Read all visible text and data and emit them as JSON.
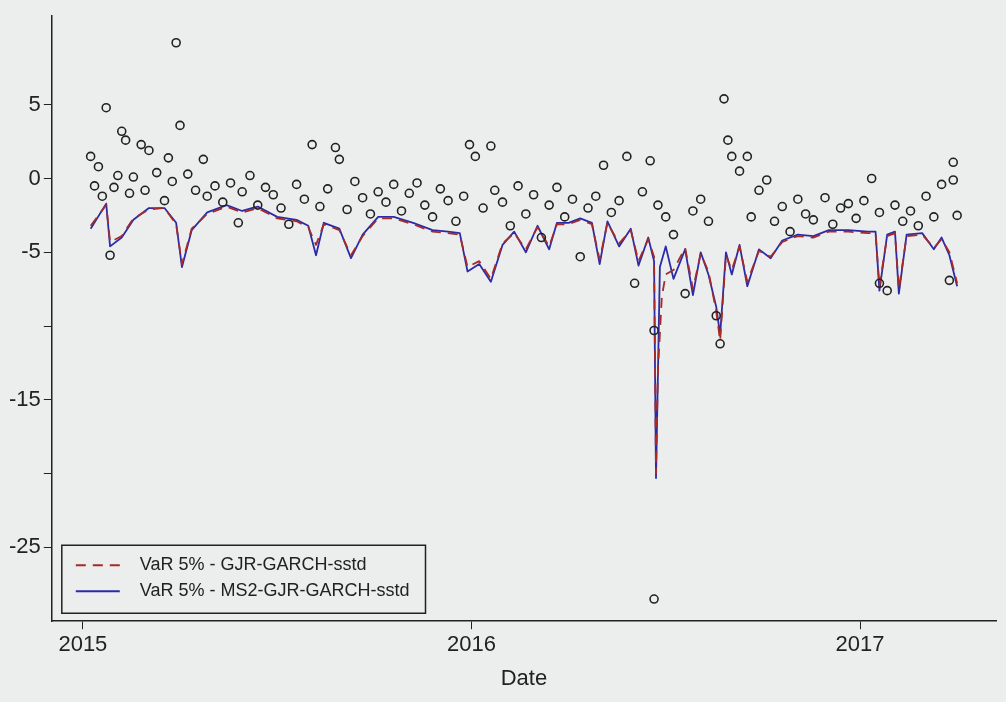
{
  "chart_data": {
    "type": "scatter",
    "xlabel": "Date",
    "xlim": [
      2014.92,
      2017.35
    ],
    "ylim": [
      -30,
      11
    ],
    "xticks": [
      2015,
      2016,
      2017
    ],
    "yticks": [
      {
        "value": -25,
        "label": "-25"
      },
      {
        "value": -20,
        "label": null
      },
      {
        "value": -15,
        "label": "-15"
      },
      {
        "value": -10,
        "label": null
      },
      {
        "value": -5,
        "label": "-5"
      },
      {
        "value": 0,
        "label": "0"
      },
      {
        "value": 5,
        "label": "5"
      }
    ],
    "grid": false,
    "legend": "bottom left",
    "series": [
      {
        "type": "scatter",
        "color": "#222222",
        "marker": "circle",
        "x": [
          2015.02,
          2015.03,
          2015.04,
          2015.05,
          2015.06,
          2015.07,
          2015.08,
          2015.09,
          2015.1,
          2015.11,
          2015.12,
          2015.13,
          2015.15,
          2015.16,
          2015.17,
          2015.19,
          2015.21,
          2015.22,
          2015.23,
          2015.24,
          2015.25,
          2015.27,
          2015.29,
          2015.31,
          2015.32,
          2015.34,
          2015.36,
          2015.38,
          2015.4,
          2015.41,
          2015.43,
          2015.45,
          2015.47,
          2015.49,
          2015.51,
          2015.53,
          2015.55,
          2015.57,
          2015.59,
          2015.61,
          2015.63,
          2015.65,
          2015.66,
          2015.68,
          2015.7,
          2015.72,
          2015.74,
          2015.76,
          2015.78,
          2015.8,
          2015.82,
          2015.84,
          2015.86,
          2015.88,
          2015.9,
          2015.92,
          2015.94,
          2015.96,
          2015.98,
          2015.995,
          2016.01,
          2016.03,
          2016.05,
          2016.06,
          2016.08,
          2016.1,
          2016.12,
          2016.14,
          2016.16,
          2016.18,
          2016.2,
          2016.22,
          2016.24,
          2016.26,
          2016.28,
          2016.3,
          2016.32,
          2016.34,
          2016.36,
          2016.38,
          2016.4,
          2016.42,
          2016.44,
          2016.46,
          2016.47,
          2016.47,
          2016.48,
          2016.5,
          2016.52,
          2016.55,
          2016.57,
          2016.59,
          2016.61,
          2016.63,
          2016.64,
          2016.65,
          2016.66,
          2016.67,
          2016.69,
          2016.71,
          2016.72,
          2016.74,
          2016.76,
          2016.78,
          2016.8,
          2016.82,
          2016.84,
          2016.86,
          2016.88,
          2016.91,
          2016.93,
          2016.95,
          2016.97,
          2016.99,
          2017.01,
          2017.03,
          2017.05,
          2017.05,
          2017.07,
          2017.09,
          2017.11,
          2017.13,
          2017.15,
          2017.17,
          2017.19,
          2017.21,
          2017.23,
          2017.24,
          2017.24,
          2017.25
        ],
        "values": [
          1.5,
          -0.5,
          0.8,
          -1.2,
          4.8,
          -5.2,
          -0.6,
          0.2,
          3.2,
          2.6,
          -1.0,
          0.1,
          2.3,
          -0.8,
          1.9,
          0.4,
          -1.5,
          1.4,
          -0.2,
          9.2,
          3.6,
          0.3,
          -0.8,
          1.3,
          -1.2,
          -0.5,
          -1.6,
          -0.3,
          -3.0,
          -0.9,
          0.2,
          -1.8,
          -0.6,
          -1.1,
          -2.0,
          -3.1,
          -0.4,
          -1.4,
          2.3,
          -1.9,
          -0.7,
          2.1,
          1.3,
          -2.1,
          -0.2,
          -1.3,
          -2.4,
          -0.9,
          -1.6,
          -0.4,
          -2.2,
          -1.0,
          -0.3,
          -1.8,
          -2.6,
          -0.7,
          -1.5,
          -2.9,
          -1.2,
          2.3,
          1.5,
          -2.0,
          2.2,
          -0.8,
          -1.6,
          -3.2,
          -0.5,
          -2.4,
          -1.1,
          -4.0,
          -1.8,
          -0.6,
          -2.6,
          -1.4,
          -5.3,
          -2.0,
          -1.2,
          0.9,
          -2.3,
          -1.5,
          1.5,
          -7.1,
          -0.9,
          1.2,
          -10.3,
          -28.5,
          -1.8,
          -2.6,
          -3.8,
          -7.8,
          -2.2,
          -1.4,
          -2.9,
          -9.3,
          -11.2,
          5.4,
          2.6,
          1.5,
          0.5,
          1.5,
          -2.6,
          -0.8,
          -0.1,
          -2.9,
          -1.9,
          -3.6,
          -1.4,
          -2.4,
          -2.8,
          -1.3,
          -3.1,
          -2.0,
          -1.7,
          -2.7,
          -1.5,
          0.0,
          -7.1,
          -2.3,
          -7.6,
          -1.8,
          -2.9,
          -2.2,
          -3.2,
          -1.2,
          -2.6,
          -0.4,
          -6.9,
          -0.1,
          1.1,
          -2.5
        ]
      },
      {
        "type": "line",
        "name": "VaR 5% - GJR-GARCH-sstd",
        "color": "#a52a2a",
        "line_style": "dashed",
        "marker": "none",
        "x": [
          2015.02,
          2015.06,
          2015.07,
          2015.1,
          2015.13,
          2015.17,
          2015.21,
          2015.24,
          2015.255,
          2015.28,
          2015.32,
          2015.37,
          2015.41,
          2015.45,
          2015.5,
          2015.55,
          2015.58,
          2015.6,
          2015.62,
          2015.66,
          2015.69,
          2015.72,
          2015.76,
          2015.8,
          2015.85,
          2015.9,
          2015.94,
          2015.97,
          2015.99,
          2016.02,
          2016.05,
          2016.08,
          2016.11,
          2016.14,
          2016.17,
          2016.2,
          2016.22,
          2016.25,
          2016.28,
          2016.31,
          2016.33,
          2016.35,
          2016.38,
          2016.41,
          2016.43,
          2016.455,
          2016.47,
          2016.475,
          2016.48,
          2016.49,
          2016.5,
          2016.52,
          2016.55,
          2016.57,
          2016.59,
          2016.61,
          2016.63,
          2016.64,
          2016.655,
          2016.67,
          2016.69,
          2016.71,
          2016.74,
          2016.77,
          2016.8,
          2016.84,
          2016.88,
          2016.92,
          2016.97,
          2017.02,
          2017.04,
          2017.05,
          2017.07,
          2017.09,
          2017.1,
          2017.12,
          2017.16,
          2017.19,
          2017.21,
          2017.23,
          2017.25
        ],
        "values": [
          -3.2,
          -1.8,
          -4.3,
          -3.9,
          -2.7,
          -2.1,
          -2.0,
          -3.1,
          -5.8,
          -3.4,
          -2.4,
          -1.9,
          -2.3,
          -2.0,
          -2.7,
          -2.9,
          -3.3,
          -4.5,
          -3.1,
          -3.5,
          -5.2,
          -3.9,
          -2.7,
          -2.7,
          -3.1,
          -3.6,
          -3.7,
          -3.8,
          -6.0,
          -5.6,
          -6.8,
          -4.4,
          -3.7,
          -4.8,
          -3.3,
          -4.6,
          -3.1,
          -3.1,
          -2.8,
          -3.1,
          -5.5,
          -3.0,
          -4.4,
          -3.5,
          -5.6,
          -4.1,
          -5.3,
          -20.0,
          -13.0,
          -8.0,
          -6.5,
          -6.2,
          -4.7,
          -7.5,
          -5.1,
          -6.3,
          -9.0,
          -11.0,
          -5.2,
          -6.2,
          -4.6,
          -7.0,
          -4.9,
          -5.3,
          -4.3,
          -3.9,
          -4.0,
          -3.6,
          -3.6,
          -3.7,
          -3.7,
          -7.3,
          -3.9,
          -3.7,
          -7.5,
          -3.9,
          -3.8,
          -4.7,
          -4.1,
          -5.0,
          -7.1
        ]
      },
      {
        "type": "line",
        "name": "VaR 5% - MS2-GJR-GARCH-sstd",
        "color": "#2b2ba8",
        "line_style": "solid",
        "marker": "none",
        "x": [
          2015.02,
          2015.06,
          2015.07,
          2015.1,
          2015.13,
          2015.17,
          2015.21,
          2015.24,
          2015.255,
          2015.28,
          2015.32,
          2015.37,
          2015.41,
          2015.45,
          2015.5,
          2015.55,
          2015.58,
          2015.6,
          2015.62,
          2015.66,
          2015.69,
          2015.72,
          2015.76,
          2015.8,
          2015.85,
          2015.9,
          2015.94,
          2015.97,
          2015.99,
          2016.02,
          2016.05,
          2016.08,
          2016.11,
          2016.14,
          2016.17,
          2016.2,
          2016.22,
          2016.25,
          2016.28,
          2016.31,
          2016.33,
          2016.35,
          2016.38,
          2016.41,
          2016.43,
          2016.455,
          2016.47,
          2016.475,
          2016.485,
          2016.5,
          2016.52,
          2016.55,
          2016.57,
          2016.59,
          2016.61,
          2016.63,
          2016.64,
          2016.655,
          2016.67,
          2016.69,
          2016.71,
          2016.74,
          2016.77,
          2016.8,
          2016.84,
          2016.88,
          2016.92,
          2016.97,
          2017.02,
          2017.04,
          2017.05,
          2017.07,
          2017.09,
          2017.1,
          2017.12,
          2017.16,
          2017.19,
          2017.21,
          2017.23,
          2017.25
        ],
        "values": [
          -3.4,
          -1.7,
          -4.6,
          -4.0,
          -2.8,
          -2.0,
          -2.0,
          -3.0,
          -6.0,
          -3.5,
          -2.3,
          -1.8,
          -2.2,
          -1.9,
          -2.6,
          -2.8,
          -3.2,
          -5.2,
          -3.0,
          -3.4,
          -5.4,
          -3.8,
          -2.6,
          -2.6,
          -3.0,
          -3.5,
          -3.6,
          -3.7,
          -6.3,
          -5.8,
          -7.0,
          -4.5,
          -3.6,
          -5.0,
          -3.2,
          -4.8,
          -3.0,
          -3.0,
          -2.7,
          -3.0,
          -5.8,
          -2.9,
          -4.6,
          -3.4,
          -5.9,
          -4.0,
          -5.6,
          -20.3,
          -6.0,
          -4.6,
          -6.8,
          -4.8,
          -7.9,
          -5.0,
          -6.5,
          -8.7,
          -10.6,
          -5.0,
          -6.5,
          -4.5,
          -7.3,
          -4.8,
          -5.4,
          -4.2,
          -3.8,
          -3.9,
          -3.5,
          -3.5,
          -3.6,
          -3.6,
          -7.6,
          -3.8,
          -3.6,
          -7.8,
          -3.8,
          -3.7,
          -4.8,
          -4.0,
          -5.2,
          -7.3
        ]
      }
    ]
  }
}
